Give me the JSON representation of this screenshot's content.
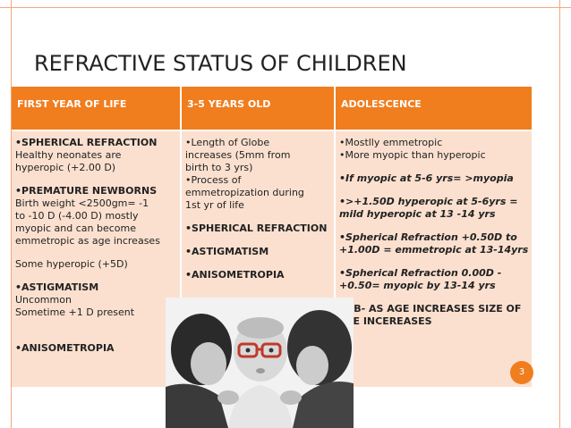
{
  "title": "REFRACTIVE STATUS OF CHILDREN",
  "table": {
    "headers": [
      "FIRST YEAR OF LIFE",
      "3-5 YEARS OLD",
      "ADOLESCENCE"
    ],
    "col1": {
      "h1": "•SPHERICAL REFRACTION",
      "l1": "Healthy neonates are",
      "l2": "hyperopic (+2.00 D)",
      "h2": "•PREMATURE NEWBORNS",
      "l3": "Birth weight <2500gm= -1",
      "l4": "to -10 D (-4.00 D) mostly",
      "l5": "myopic and can become",
      "l6": "emmetropic as age increases",
      "l7": "Some hyperopic (+5D)",
      "h3": "•ASTIGMATISM",
      "l8": "Uncommon",
      "l9": "Sometime +1 D present",
      "h4": "•ANISOMETROPIA"
    },
    "col2": {
      "l1": "•Length of Globe",
      "l2": "increases (5mm from",
      "l3": "birth to 3 yrs)",
      "l4": "•Process of",
      "l5": "emmetropization during",
      "l6": "1st yr of life",
      "h1": "•SPHERICAL REFRACTION",
      "h2": "•ASTIGMATISM",
      "h3": "•ANISOMETROPIA"
    },
    "col3": {
      "l1": "•Mostlly emmetropic",
      "l2": "•More myopic than hyperopic",
      "i1": "•If myopic at 5-6 yrs= >myopia",
      "i2a": "•>+1.50D hyperopic at 5-6yrs =",
      "i2b": "mild hyperopic at 13 -14 yrs",
      "i3a": "•Spherical Refraction +0.50D to",
      "i3b": "+1.00D = emmetropic at 13-14yrs",
      "i4a": "•Spherical Refraction 0.00D -",
      "i4b": "+0.50= myopic by 13-14 yrs",
      "n1": "•NB- AS AGE INCREASES SIZE OF",
      "n2": "EYE INCEREASES"
    }
  },
  "page_number": "3",
  "colors": {
    "accent": "#f07d1e",
    "cell_bg": "#fbe0cf",
    "frame": "#f4a77c"
  },
  "photo_description_icon": "family-photo"
}
